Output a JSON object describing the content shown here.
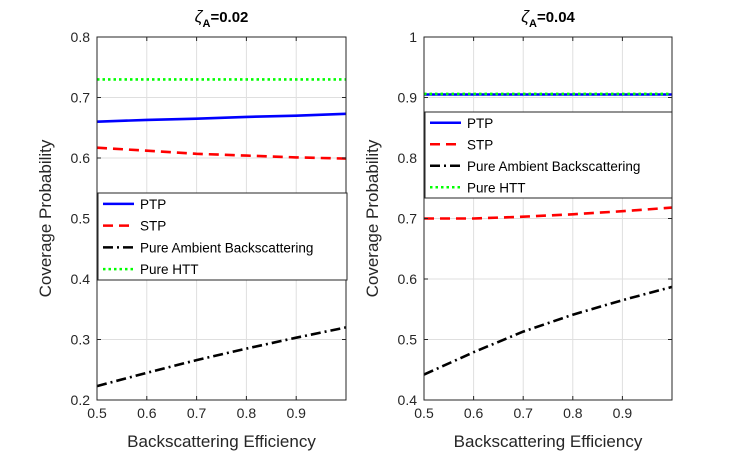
{
  "chart_data": [
    {
      "type": "line",
      "title": {
        "symbol": "ζ",
        "subscript": "A",
        "suffix": "=0.02"
      },
      "xlabel": "Backscattering Efficiency",
      "ylabel": "Coverage Probability",
      "xlim": [
        0.5,
        1.0
      ],
      "ylim": [
        0.2,
        0.8
      ],
      "xticks": [
        "0.5",
        "0.6",
        "0.7",
        "0.8",
        "0.9"
      ],
      "xtick_values": [
        0.5,
        0.6,
        0.7,
        0.8,
        0.9
      ],
      "yticks": [
        "0.2",
        "0.3",
        "0.4",
        "0.5",
        "0.6",
        "0.7",
        "0.8"
      ],
      "ytick_values": [
        0.2,
        0.3,
        0.4,
        0.5,
        0.6,
        0.7,
        0.8
      ],
      "grid": true,
      "legend_position": "middle",
      "x": [
        0.5,
        0.6,
        0.7,
        0.8,
        0.9,
        1.0
      ],
      "series": [
        {
          "name": "PTP",
          "color": "#0000ff",
          "dash": "solid",
          "values": [
            0.66,
            0.663,
            0.665,
            0.668,
            0.67,
            0.673
          ]
        },
        {
          "name": "STP",
          "color": "#ff0000",
          "dash": "dash",
          "values": [
            0.617,
            0.612,
            0.607,
            0.604,
            0.601,
            0.599
          ]
        },
        {
          "name": "Pure Ambient Backscattering",
          "color": "#000000",
          "dash": "dashdot",
          "values": [
            0.223,
            0.245,
            0.266,
            0.285,
            0.303,
            0.32
          ]
        },
        {
          "name": "Pure HTT",
          "color": "#00ff00",
          "dash": "dot",
          "values": [
            0.73,
            0.73,
            0.73,
            0.73,
            0.73,
            0.73
          ]
        }
      ]
    },
    {
      "type": "line",
      "title": {
        "symbol": "ζ",
        "subscript": "A",
        "suffix": "=0.04"
      },
      "xlabel": "Backscattering Efficiency",
      "ylabel": "Coverage Probability",
      "xlim": [
        0.5,
        1.0
      ],
      "ylim": [
        0.4,
        1.0
      ],
      "xticks": [
        "0.5",
        "0.6",
        "0.7",
        "0.8",
        "0.9"
      ],
      "xtick_values": [
        0.5,
        0.6,
        0.7,
        0.8,
        0.9
      ],
      "yticks": [
        "0.4",
        "0.5",
        "0.6",
        "0.7",
        "0.8",
        "0.9",
        "1"
      ],
      "ytick_values": [
        0.4,
        0.5,
        0.6,
        0.7,
        0.8,
        0.9,
        1.0
      ],
      "grid": true,
      "legend_position": "top",
      "x": [
        0.5,
        0.6,
        0.7,
        0.8,
        0.9,
        1.0
      ],
      "series": [
        {
          "name": "PTP",
          "color": "#0000ff",
          "dash": "solid",
          "values": [
            0.905,
            0.905,
            0.905,
            0.905,
            0.905,
            0.905
          ]
        },
        {
          "name": "STP",
          "color": "#ff0000",
          "dash": "dash",
          "values": [
            0.7,
            0.7,
            0.703,
            0.707,
            0.712,
            0.718
          ]
        },
        {
          "name": "Pure Ambient Backscattering",
          "color": "#000000",
          "dash": "dashdot",
          "values": [
            0.442,
            0.479,
            0.513,
            0.541,
            0.565,
            0.587
          ]
        },
        {
          "name": "Pure HTT",
          "color": "#00ff00",
          "dash": "dot",
          "values": [
            0.906,
            0.906,
            0.906,
            0.906,
            0.906,
            0.906
          ]
        }
      ]
    }
  ]
}
